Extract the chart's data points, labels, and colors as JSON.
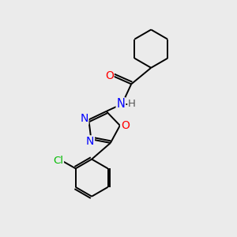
{
  "background_color": "#ebebeb",
  "bond_color": "#000000",
  "atom_colors": {
    "O": "#ff0000",
    "N": "#0000ff",
    "Cl": "#00bb00",
    "C": "#000000",
    "H": "#555555"
  },
  "lw": 1.4,
  "fs": 9.5
}
